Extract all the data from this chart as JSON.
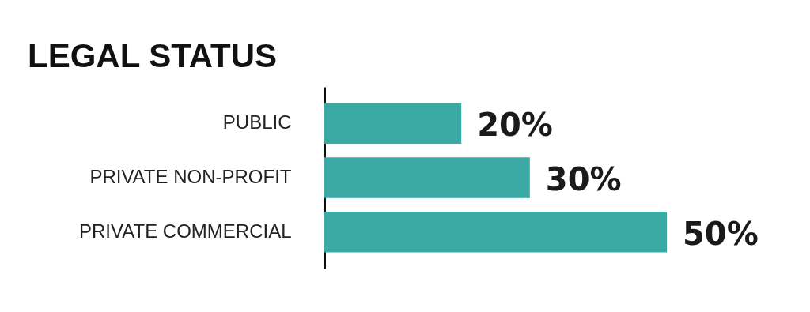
{
  "chart_data": {
    "type": "bar",
    "orientation": "horizontal",
    "title": "LEGAL STATUS",
    "categories": [
      "PUBLIC",
      "PRIVATE NON-PROFIT",
      "PRIVATE COMMERCIAL"
    ],
    "values": [
      20,
      30,
      50
    ],
    "color": "#3aa9a3",
    "value_labels": [
      "20%",
      "30%",
      "50%"
    ]
  }
}
